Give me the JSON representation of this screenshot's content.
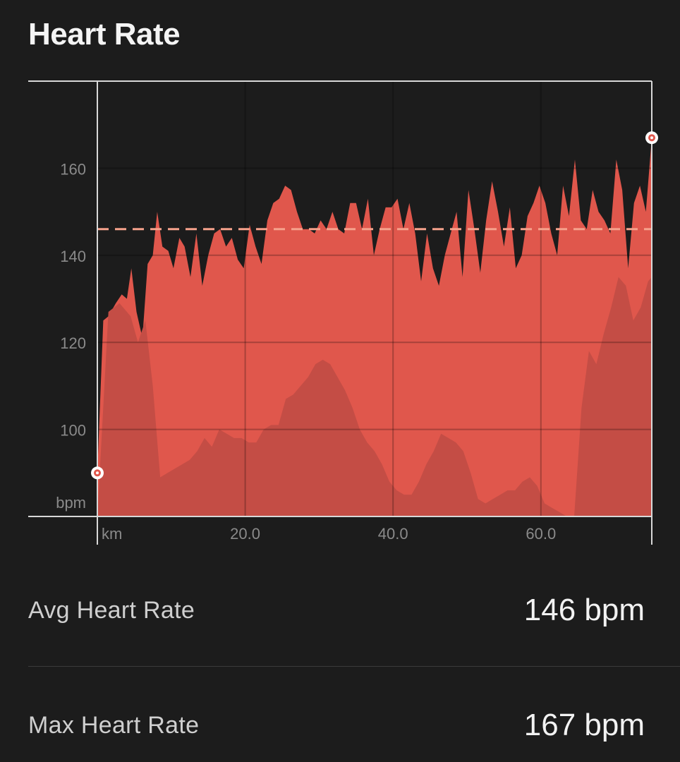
{
  "header": {
    "title": "Heart Rate"
  },
  "colors": {
    "background": "#1c1c1c",
    "fill_main": "#e0574c",
    "fill_shadow": "#c44d45",
    "avg_line": "#f6a28c",
    "frame": "#d8d8d8",
    "grid": "#000000"
  },
  "chart_data": {
    "type": "area",
    "xlabel": "km",
    "ylabel": "bpm",
    "xlim": [
      0,
      75
    ],
    "ylim": [
      80,
      180
    ],
    "x_ticks": [
      0,
      20,
      40,
      60
    ],
    "x_tick_labels": [
      "km",
      "20.0",
      "40.0",
      "60.0"
    ],
    "y_ticks": [
      100,
      120,
      140,
      160
    ],
    "y_tick_labels": [
      "100",
      "120",
      "140",
      "160"
    ],
    "avg_line_value": 146,
    "grid": true,
    "series": [
      {
        "values_x": [
          0,
          0.8,
          1.5,
          2.5,
          3.3,
          4,
          4.6,
          5.3,
          6.1,
          6.8,
          7.5,
          8.1,
          8.8,
          9.6,
          10.3,
          11.1,
          11.8,
          12.6,
          13.4,
          14.2,
          15,
          15.8,
          16.6,
          17.4,
          18.2,
          19,
          19.8,
          20.6,
          21.4,
          22.2,
          23,
          23.8,
          24.6,
          25.4,
          26.2,
          27,
          27.8,
          28.6,
          29.4,
          30.2,
          31,
          31.8,
          32.6,
          33.4,
          34.2,
          35,
          35.8,
          36.6,
          37.4,
          38.2,
          39,
          39.8,
          40.6,
          41.4,
          42.2,
          43,
          43.8,
          44.6,
          45.4,
          46.2,
          47,
          47.8,
          48.6,
          49.4,
          50.2,
          51,
          51.8,
          52.6,
          53.4,
          54.2,
          55,
          55.8,
          56.6,
          57.4,
          58.2,
          59,
          59.8,
          60.6,
          61.4,
          62.2,
          63,
          63.8,
          64.6,
          65.4,
          66.2,
          67,
          67.8,
          68.6,
          69.4,
          70.2,
          71,
          71.8,
          72.6,
          73.4,
          74.2,
          75
        ],
        "values": [
          90,
          125,
          126,
          129,
          131,
          130,
          137,
          127,
          121,
          138,
          140,
          150,
          142,
          141,
          137,
          144,
          142,
          135,
          145,
          133,
          140,
          145,
          146,
          142,
          144,
          139,
          137,
          147,
          142,
          138,
          148,
          152,
          153,
          156,
          155,
          150,
          146,
          146,
          145,
          148,
          146,
          150,
          146,
          145,
          152,
          152,
          146,
          153,
          140,
          146,
          151,
          151,
          153,
          146,
          152,
          145,
          134,
          145,
          137,
          133,
          140,
          145,
          150,
          135,
          155,
          146,
          136,
          148,
          157,
          150,
          142,
          151,
          137,
          140,
          149,
          152,
          156,
          152,
          145,
          140,
          156,
          149,
          162,
          148,
          146,
          155,
          150,
          148,
          145,
          162,
          155,
          137,
          152,
          156,
          150,
          167
        ]
      },
      {
        "values_x": [
          0,
          1.5,
          3,
          4.5,
          5.5,
          6.5,
          7.5,
          8.5,
          9.5,
          10.5,
          11.5,
          12.5,
          13.5,
          14.5,
          15.5,
          16.5,
          17.5,
          18.5,
          19.5,
          20.5,
          21.5,
          22.5,
          23.5,
          24.5,
          25.5,
          26.5,
          27.5,
          28.5,
          29.5,
          30.5,
          31.5,
          32.5,
          33.5,
          34.5,
          35.5,
          36.5,
          37.5,
          38.5,
          39.5,
          40.5,
          41.5,
          42.5,
          43.5,
          44.5,
          45.5,
          46.5,
          47.5,
          48.5,
          49.5,
          50.5,
          51.5,
          52.5,
          53.5,
          54.5,
          55.5,
          56.5,
          57.5,
          58.5,
          59.5,
          60.5,
          61.5,
          62.5,
          63.5,
          64.5,
          65.5,
          66.5,
          67.5,
          68.5,
          69.5,
          70.5,
          71.5,
          72.5,
          73.5,
          74.5,
          75
        ],
        "values": [
          80,
          127,
          129,
          126,
          120,
          125,
          110,
          89,
          90,
          91,
          92,
          93,
          95,
          98,
          96,
          100,
          99,
          98,
          98,
          97,
          97,
          100,
          101,
          101,
          107,
          108,
          110,
          112,
          115,
          116,
          115,
          112,
          109,
          105,
          100,
          97,
          95,
          92,
          88,
          86,
          85,
          85,
          88,
          92,
          95,
          99,
          98,
          97,
          95,
          90,
          84,
          83,
          84,
          85,
          86,
          86,
          88,
          89,
          87,
          83,
          82,
          81,
          80,
          80,
          105,
          118,
          115,
          122,
          128,
          135,
          133,
          125,
          128,
          134,
          135
        ]
      }
    ]
  },
  "stats": {
    "avg": {
      "label": "Avg Heart Rate",
      "value": "146 bpm"
    },
    "max": {
      "label": "Max Heart Rate",
      "value": "167 bpm"
    }
  }
}
